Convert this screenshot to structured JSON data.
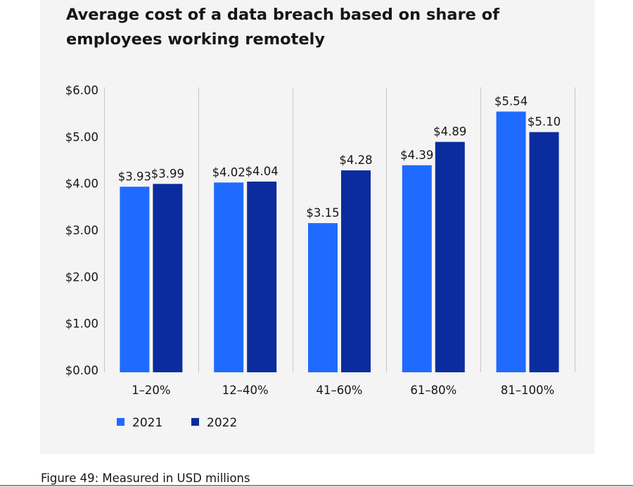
{
  "title": "Average cost of a data breach based on share of employees working remotely",
  "caption": "Figure 49: Measured in USD millions",
  "colors": {
    "2021": "#1f6bff",
    "2022": "#0b2c9e",
    "panel": "#f4f4f4",
    "grid": "#c6c6c6"
  },
  "chart_data": {
    "type": "bar",
    "title": "Average cost of a data breach based on share of employees working remotely",
    "xlabel": "",
    "ylabel": "",
    "categories": [
      "1–20%",
      "12–40%",
      "41–60%",
      "61–80%",
      "81–100%"
    ],
    "series": [
      {
        "name": "2021",
        "values": [
          3.93,
          4.02,
          3.15,
          4.39,
          5.54
        ],
        "labels": [
          "$3.93",
          "$4.02",
          "$3.15",
          "$4.39",
          "$5.54"
        ]
      },
      {
        "name": "2022",
        "values": [
          3.99,
          4.04,
          4.28,
          4.89,
          5.1
        ],
        "labels": [
          "$3.99",
          "$4.04",
          "$4.28",
          "$4.89",
          "$5.10"
        ]
      }
    ],
    "ylim": [
      0,
      6
    ],
    "yticks": [
      0,
      1,
      2,
      3,
      4,
      5,
      6
    ],
    "ytick_labels": [
      "$0.00",
      "$1.00",
      "$2.00",
      "$3.00",
      "$4.00",
      "$5.00",
      "$6.00"
    ],
    "legend_position": "bottom-left",
    "grid": "vertical category separators"
  }
}
